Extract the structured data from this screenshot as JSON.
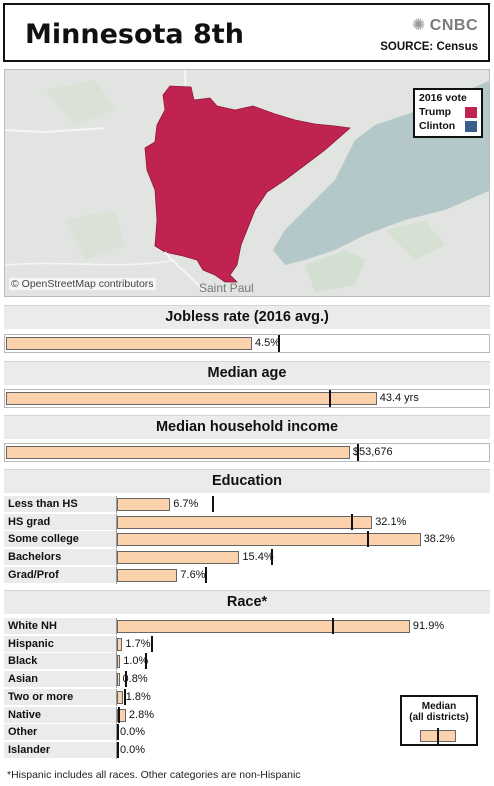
{
  "header": {
    "title": "Minnesota 8th",
    "brand": "CNBC",
    "source": "SOURCE: Census"
  },
  "map": {
    "attribution": "© OpenStreetMap contributors",
    "city_label": "Saint Paul",
    "legend": {
      "title": "2016 vote",
      "items": [
        {
          "label": "Trump",
          "color": "#c0234f"
        },
        {
          "label": "Clinton",
          "color": "#3a5e8c"
        }
      ],
      "winner": "Trump"
    }
  },
  "colors": {
    "bar_fill": "#fcd2ad",
    "bar_border": "#666666",
    "median_tick": "#111111",
    "band_bg": "#ebebeb"
  },
  "chart_data": [
    {
      "type": "bar",
      "title": "Jobless rate (2016 avg.)",
      "values": [
        4.5
      ],
      "value_labels": [
        "4.5%"
      ],
      "median": 5.0,
      "xlim": [
        0,
        7.5
      ]
    },
    {
      "type": "bar",
      "title": "Median age",
      "values": [
        43.4
      ],
      "value_labels": [
        "43.4 yrs"
      ],
      "median": 37.9,
      "xlim": [
        0,
        48
      ]
    },
    {
      "type": "bar",
      "title": "Median household income",
      "values": [
        53676
      ],
      "value_labels": [
        "$53,676"
      ],
      "median": 55000,
      "xlim": [
        0,
        64000
      ]
    },
    {
      "type": "bar",
      "title": "Education",
      "categories": [
        "Less than HS",
        "HS grad",
        "Some college",
        "Bachelors",
        "Grad/Prof"
      ],
      "values": [
        6.7,
        32.1,
        38.2,
        15.4,
        7.6
      ],
      "value_labels": [
        "6.7%",
        "32.1%",
        "38.2%",
        "15.4%",
        "7.6%"
      ],
      "medians": [
        12.0,
        29.4,
        31.5,
        19.4,
        11.1
      ],
      "xlim": [
        0,
        40
      ]
    },
    {
      "type": "bar",
      "title": "Race*",
      "categories": [
        "White NH",
        "Hispanic",
        "Black",
        "Asian",
        "Two or more",
        "Native",
        "Other",
        "Islander"
      ],
      "values": [
        91.9,
        1.7,
        1.0,
        0.8,
        1.8,
        2.8,
        0.0,
        0.0
      ],
      "value_labels": [
        "91.9%",
        "1.7%",
        "1.0%",
        "0.8%",
        "1.8%",
        "2.8%",
        "0.0%",
        "0.0%"
      ],
      "medians": [
        67.5,
        10.8,
        8.8,
        2.6,
        2.3,
        0.3,
        0.1,
        0.1
      ],
      "xlim": [
        0,
        96
      ]
    }
  ],
  "median_legend": {
    "line1": "Median",
    "line2": "(all districts)"
  },
  "footnote": "*Hispanic includes all races. Other categories are non-Hispanic"
}
